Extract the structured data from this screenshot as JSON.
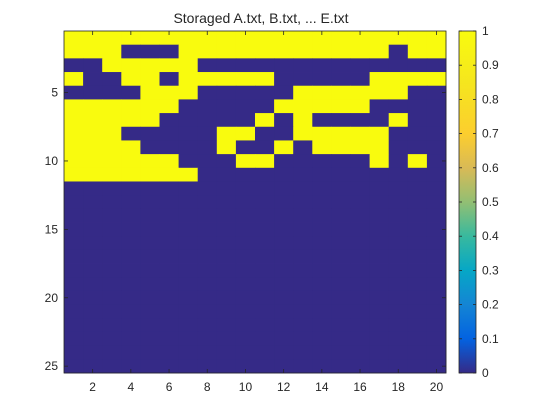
{
  "chart_data": {
    "type": "heatmap",
    "title": "Storaged A.txt, B.txt, ... E.txt",
    "xlabel": "",
    "ylabel": "",
    "x_range": [
      0.5,
      20.5
    ],
    "y_range": [
      0.5,
      25.5
    ],
    "x_ticks": [
      2,
      4,
      6,
      8,
      10,
      12,
      14,
      16,
      18,
      20
    ],
    "y_ticks": [
      5,
      10,
      15,
      20,
      25
    ],
    "colorbar": {
      "range": [
        0,
        1
      ],
      "ticks": [
        "0",
        "0.1",
        "0.2",
        "0.3",
        "0.4",
        "0.5",
        "0.6",
        "0.7",
        "0.8",
        "0.9",
        "1"
      ],
      "colormap": "parula"
    },
    "colors": {
      "zero": "#352a87",
      "one": "#f9fb0e"
    },
    "rows": [
      [
        1,
        1,
        1,
        1,
        1,
        1,
        1,
        1,
        1,
        1,
        1,
        1,
        1,
        1,
        1,
        1,
        1,
        1,
        1,
        1
      ],
      [
        1,
        1,
        1,
        0,
        0,
        0,
        1,
        1,
        1,
        1,
        1,
        1,
        1,
        1,
        1,
        1,
        1,
        0,
        1,
        1
      ],
      [
        0,
        0,
        1,
        1,
        1,
        1,
        1,
        0,
        0,
        0,
        0,
        0,
        0,
        0,
        0,
        0,
        0,
        0,
        0,
        0
      ],
      [
        1,
        0,
        0,
        1,
        1,
        0,
        1,
        1,
        1,
        1,
        1,
        0,
        0,
        0,
        0,
        0,
        1,
        1,
        1,
        1
      ],
      [
        0,
        0,
        0,
        0,
        1,
        1,
        1,
        0,
        0,
        0,
        0,
        0,
        1,
        1,
        1,
        1,
        1,
        1,
        0,
        0
      ],
      [
        1,
        1,
        1,
        1,
        1,
        1,
        0,
        0,
        0,
        0,
        0,
        1,
        1,
        1,
        1,
        1,
        0,
        0,
        0,
        0
      ],
      [
        1,
        1,
        1,
        1,
        1,
        0,
        0,
        0,
        0,
        0,
        1,
        0,
        1,
        0,
        0,
        0,
        0,
        1,
        0,
        0
      ],
      [
        1,
        1,
        1,
        0,
        0,
        0,
        0,
        0,
        1,
        1,
        0,
        0,
        1,
        1,
        1,
        1,
        1,
        0,
        0,
        0
      ],
      [
        1,
        1,
        1,
        1,
        0,
        0,
        0,
        0,
        1,
        0,
        0,
        1,
        0,
        1,
        1,
        1,
        1,
        0,
        0,
        0
      ],
      [
        1,
        1,
        1,
        1,
        1,
        1,
        0,
        0,
        0,
        1,
        1,
        0,
        0,
        0,
        0,
        0,
        1,
        0,
        1,
        0
      ],
      [
        1,
        1,
        1,
        1,
        1,
        1,
        1,
        0,
        0,
        0,
        0,
        0,
        0,
        0,
        0,
        0,
        0,
        0,
        0,
        0
      ],
      [
        0,
        0,
        0,
        0,
        0,
        0,
        0,
        0,
        0,
        0,
        0,
        0,
        0,
        0,
        0,
        0,
        0,
        0,
        0,
        0
      ],
      [
        0,
        0,
        0,
        0,
        0,
        0,
        0,
        0,
        0,
        0,
        0,
        0,
        0,
        0,
        0,
        0,
        0,
        0,
        0,
        0
      ],
      [
        0,
        0,
        0,
        0,
        0,
        0,
        0,
        0,
        0,
        0,
        0,
        0,
        0,
        0,
        0,
        0,
        0,
        0,
        0,
        0
      ],
      [
        0,
        0,
        0,
        0,
        0,
        0,
        0,
        0,
        0,
        0,
        0,
        0,
        0,
        0,
        0,
        0,
        0,
        0,
        0,
        0
      ],
      [
        0,
        0,
        0,
        0,
        0,
        0,
        0,
        0,
        0,
        0,
        0,
        0,
        0,
        0,
        0,
        0,
        0,
        0,
        0,
        0
      ],
      [
        0,
        0,
        0,
        0,
        0,
        0,
        0,
        0,
        0,
        0,
        0,
        0,
        0,
        0,
        0,
        0,
        0,
        0,
        0,
        0
      ],
      [
        0,
        0,
        0,
        0,
        0,
        0,
        0,
        0,
        0,
        0,
        0,
        0,
        0,
        0,
        0,
        0,
        0,
        0,
        0,
        0
      ],
      [
        0,
        0,
        0,
        0,
        0,
        0,
        0,
        0,
        0,
        0,
        0,
        0,
        0,
        0,
        0,
        0,
        0,
        0,
        0,
        0
      ],
      [
        0,
        0,
        0,
        0,
        0,
        0,
        0,
        0,
        0,
        0,
        0,
        0,
        0,
        0,
        0,
        0,
        0,
        0,
        0,
        0
      ],
      [
        0,
        0,
        0,
        0,
        0,
        0,
        0,
        0,
        0,
        0,
        0,
        0,
        0,
        0,
        0,
        0,
        0,
        0,
        0,
        0
      ],
      [
        0,
        0,
        0,
        0,
        0,
        0,
        0,
        0,
        0,
        0,
        0,
        0,
        0,
        0,
        0,
        0,
        0,
        0,
        0,
        0
      ],
      [
        0,
        0,
        0,
        0,
        0,
        0,
        0,
        0,
        0,
        0,
        0,
        0,
        0,
        0,
        0,
        0,
        0,
        0,
        0,
        0
      ],
      [
        0,
        0,
        0,
        0,
        0,
        0,
        0,
        0,
        0,
        0,
        0,
        0,
        0,
        0,
        0,
        0,
        0,
        0,
        0,
        0
      ],
      [
        0,
        0,
        0,
        0,
        0,
        0,
        0,
        0,
        0,
        0,
        0,
        0,
        0,
        0,
        0,
        0,
        0,
        0,
        0,
        0
      ]
    ]
  }
}
